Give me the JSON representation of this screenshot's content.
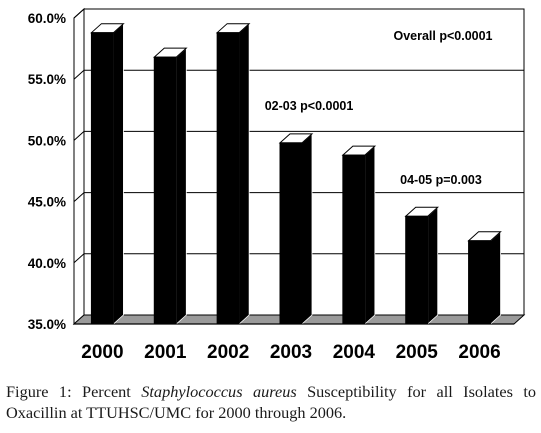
{
  "chart_data": {
    "type": "bar",
    "style": "3d-bar",
    "categories": [
      "2000",
      "2001",
      "2002",
      "2003",
      "2004",
      "2005",
      "2006"
    ],
    "values": [
      58.8,
      56.8,
      58.8,
      49.8,
      48.8,
      43.8,
      41.8
    ],
    "value_unit": "percent",
    "ylim": [
      35,
      60
    ],
    "yticks": [
      "35.0%",
      "40.0%",
      "45.0%",
      "50.0%",
      "55.0%",
      "60.0%"
    ],
    "ytick_values": [
      35,
      40,
      45,
      50,
      55,
      60
    ],
    "grid": true,
    "bar_color": "#000000",
    "bar_top_color": "#ffffff",
    "floor_color": "#9a9a9a",
    "annotations": [
      {
        "id": "overall",
        "text": "Overall  p<0.0001"
      },
      {
        "id": "p0203",
        "text": "02-03  p<0.0001"
      },
      {
        "id": "p0405",
        "text": "04-05  p=0.003"
      }
    ]
  },
  "caption": {
    "label": "Figure 1:",
    "text_before": "Percent",
    "italic": "Staphylococcus aureus",
    "text_after": "Susceptibility for all Isolates to Oxacillin at TTUHSC/UMC for 2000 through 2006."
  }
}
